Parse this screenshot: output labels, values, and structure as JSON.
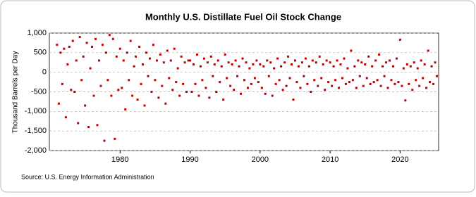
{
  "chart_data": {
    "type": "scatter",
    "title": "Monthly U.S. Distillate Fuel Oil Stock Change",
    "y_label": "Thousand Barrels per Day",
    "source": "Source: U.S. Energy Information Administration",
    "color": "#c00000",
    "grid": true,
    "xlim": [
      1969.9,
      2025.5
    ],
    "xticks": [
      1980,
      1990,
      2000,
      2010,
      2020
    ],
    "ylim": [
      -2000,
      1000
    ],
    "yticks": [
      {
        "value": -2000,
        "label": "-2,000"
      },
      {
        "value": -1500,
        "label": "-1,500"
      },
      {
        "value": -1000,
        "label": "-1,000"
      },
      {
        "value": -500,
        "label": "-500"
      },
      0,
      500,
      {
        "value": 1000,
        "label": "1,000"
      }
    ],
    "x": [
      1971,
      1971.25,
      1971.5,
      1971.75,
      1972,
      1972.25,
      1972.5,
      1972.75,
      1973,
      1973.25,
      1973.5,
      1973.75,
      1974,
      1974.25,
      1974.5,
      1974.75,
      1975,
      1975.25,
      1975.5,
      1975.75,
      1976,
      1976.25,
      1976.5,
      1976.75,
      1977,
      1977.25,
      1977.5,
      1977.75,
      1978,
      1978.25,
      1978.5,
      1978.75,
      1979,
      1979.25,
      1979.5,
      1979.75,
      1980,
      1980.25,
      1980.5,
      1980.75,
      1981,
      1981.25,
      1981.5,
      1981.75,
      1982,
      1982.25,
      1982.5,
      1982.75,
      1983,
      1983.25,
      1983.5,
      1983.75,
      1984,
      1984.25,
      1984.5,
      1984.75,
      1985,
      1985.25,
      1985.5,
      1985.75,
      1986,
      1986.25,
      1986.5,
      1986.75,
      1987,
      1987.25,
      1987.5,
      1987.75,
      1988,
      1988.25,
      1988.5,
      1988.75,
      1989,
      1989.25,
      1989.5,
      1989.75,
      1990,
      1990.25,
      1990.5,
      1990.75,
      1991,
      1991.25,
      1991.5,
      1991.75,
      1992,
      1992.25,
      1992.5,
      1992.75,
      1993,
      1993.25,
      1993.5,
      1993.75,
      1994,
      1994.25,
      1994.5,
      1994.75,
      1995,
      1995.25,
      1995.5,
      1995.75,
      1996,
      1996.25,
      1996.5,
      1996.75,
      1997,
      1997.25,
      1997.5,
      1997.75,
      1998,
      1998.25,
      1998.5,
      1998.75,
      1999,
      1999.25,
      1999.5,
      1999.75,
      2000,
      2000.25,
      2000.5,
      2000.75,
      2001,
      2001.25,
      2001.5,
      2001.75,
      2002,
      2002.25,
      2002.5,
      2002.75,
      2003,
      2003.25,
      2003.5,
      2003.75,
      2004,
      2004.25,
      2004.5,
      2004.75,
      2005,
      2005.25,
      2005.5,
      2005.75,
      2006,
      2006.25,
      2006.5,
      2006.75,
      2007,
      2007.25,
      2007.5,
      2007.75,
      2008,
      2008.25,
      2008.5,
      2008.75,
      2009,
      2009.25,
      2009.5,
      2009.75,
      2010,
      2010.25,
      2010.5,
      2010.75,
      2011,
      2011.25,
      2011.5,
      2011.75,
      2012,
      2012.25,
      2012.5,
      2012.75,
      2013,
      2013.25,
      2013.5,
      2013.75,
      2014,
      2014.25,
      2014.5,
      2014.75,
      2015,
      2015.25,
      2015.5,
      2015.75,
      2016,
      2016.25,
      2016.5,
      2016.75,
      2017,
      2017.25,
      2017.5,
      2017.75,
      2018,
      2018.25,
      2018.5,
      2018.75,
      2019,
      2019.25,
      2019.5,
      2019.75,
      2020,
      2020.25,
      2020.5,
      2020.75,
      2021,
      2021.25,
      2021.5,
      2021.75,
      2022,
      2022.25,
      2022.5,
      2022.75,
      2023,
      2023.25,
      2023.5,
      2023.75,
      2024,
      2024.25,
      2024.5,
      2024.75,
      2025,
      2025.25
    ],
    "values": [
      700,
      -800,
      500,
      -300,
      600,
      -1150,
      200,
      650,
      -450,
      800,
      -500,
      300,
      -1300,
      900,
      -200,
      400,
      -850,
      750,
      -1400,
      100,
      650,
      -600,
      850,
      -1350,
      300,
      -350,
      700,
      -1750,
      500,
      -200,
      950,
      -600,
      850,
      -1700,
      400,
      -450,
      600,
      -400,
      300,
      -950,
      500,
      -200,
      800,
      -600,
      150,
      400,
      -700,
      650,
      -300,
      200,
      -850,
      500,
      -100,
      350,
      -500,
      700,
      -200,
      300,
      -650,
      450,
      -350,
      250,
      -800,
      550,
      -150,
      300,
      -450,
      600,
      -250,
      100,
      -600,
      400,
      -300,
      250,
      -500,
      300,
      300,
      -500,
      200,
      -300,
      450,
      -600,
      150,
      -200,
      350,
      -400,
      250,
      -650,
      400,
      -100,
      200,
      -500,
      300,
      -250,
      150,
      -700,
      450,
      -150,
      250,
      -350,
      200,
      -450,
      300,
      -100,
      150,
      -550,
      350,
      -200,
      250,
      -400,
      100,
      -300,
      200,
      -150,
      300,
      -250,
      200,
      -400,
      150,
      -550,
      300,
      -100,
      250,
      -600,
      100,
      -300,
      350,
      -200,
      150,
      -450,
      250,
      -350,
      400,
      -150,
      200,
      -700,
      300,
      -250,
      150,
      -400,
      250,
      -100,
      350,
      -300,
      150,
      -500,
      300,
      -200,
      250,
      -350,
      400,
      -150,
      200,
      -450,
      300,
      -250,
      250,
      -350,
      150,
      -200,
      300,
      -400,
      200,
      -150,
      350,
      -300,
      100,
      -250,
      550,
      -200,
      150,
      -400,
      300,
      -100,
      250,
      -350,
      200,
      -150,
      400,
      -300,
      150,
      -250,
      300,
      -200,
      450,
      -350,
      150,
      -100,
      250,
      -400,
      300,
      -200,
      150,
      -300,
      350,
      -250,
      830,
      -350,
      100,
      -720,
      200,
      -300,
      150,
      -450,
      250,
      -200,
      100,
      -350,
      300,
      -150,
      200,
      -400,
      550,
      -250,
      150,
      -300,
      250,
      -100
    ]
  }
}
